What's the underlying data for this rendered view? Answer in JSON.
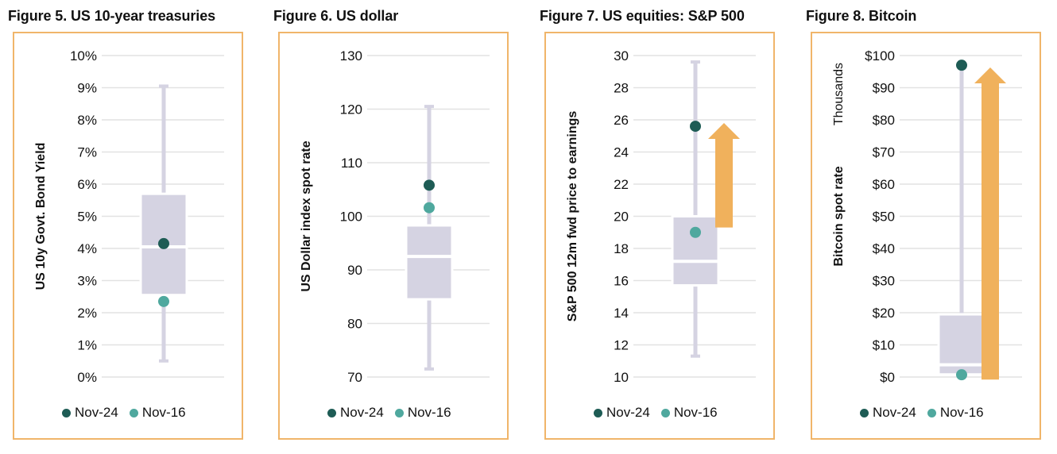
{
  "colors": {
    "nov24": "#1E5C55",
    "nov16": "#4FA89E",
    "box": "#D5D3E2",
    "grid": "#E2E2E2",
    "arrow": "#F0B15C",
    "frame": "#F0B56A"
  },
  "legend": {
    "nov24": "Nov-24",
    "nov16": "Nov-16"
  },
  "chart_data": [
    {
      "type": "boxplot",
      "title": "Figure 5. US 10-year treasuries",
      "ylabel": "US 10y Govt. Bond Yield",
      "ylim": [
        0,
        10
      ],
      "ticks": [
        0,
        1,
        2,
        3,
        4,
        5,
        6,
        7,
        8,
        9,
        10
      ],
      "tick_labels": [
        "0%",
        "1%",
        "2%",
        "3%",
        "4%",
        "5%",
        "6%",
        "7%",
        "8%",
        "9%",
        "10%"
      ],
      "box": {
        "min": 0.5,
        "q1": 2.55,
        "median": 4.05,
        "q3": 5.7,
        "max": 9.05
      },
      "series": [
        {
          "name": "Nov-24",
          "value": 4.15
        },
        {
          "name": "Nov-16",
          "value": 2.35
        }
      ],
      "arrow": null
    },
    {
      "type": "boxplot",
      "title": "Figure 6. US dollar",
      "ylabel": "US Dollar index spot rate",
      "ylim": [
        70,
        130
      ],
      "ticks": [
        70,
        80,
        90,
        100,
        110,
        120,
        130
      ],
      "tick_labels": [
        "70",
        "80",
        "90",
        "100",
        "110",
        "120",
        "130"
      ],
      "box": {
        "min": 71.5,
        "q1": 84.5,
        "median": 92.5,
        "q3": 98.3,
        "max": 120.5
      },
      "series": [
        {
          "name": "Nov-24",
          "value": 105.8
        },
        {
          "name": "Nov-16",
          "value": 101.6
        }
      ],
      "arrow": null
    },
    {
      "type": "boxplot",
      "title": "Figure 7. US equities: S&P 500",
      "ylabel": "S&P 500 12m fwd price to earnings",
      "ylim": [
        10,
        30
      ],
      "ticks": [
        10,
        12,
        14,
        16,
        18,
        20,
        22,
        24,
        26,
        28,
        30
      ],
      "tick_labels": [
        "10",
        "12",
        "14",
        "16",
        "18",
        "20",
        "22",
        "24",
        "26",
        "28",
        "30"
      ],
      "box": {
        "min": 11.3,
        "q1": 15.7,
        "median": 17.2,
        "q3": 20.0,
        "max": 29.6
      },
      "series": [
        {
          "name": "Nov-24",
          "value": 25.6
        },
        {
          "name": "Nov-16",
          "value": 19.0
        }
      ],
      "arrow": {
        "from": 19.3,
        "to": 25.8
      }
    },
    {
      "type": "boxplot",
      "title": "Figure 8. Bitcoin",
      "ylabel": "Bitcoin spot rate",
      "unit_label": "Thousands",
      "ylim": [
        0,
        100
      ],
      "ticks": [
        0,
        10,
        20,
        30,
        40,
        50,
        60,
        70,
        80,
        90,
        100
      ],
      "tick_labels": [
        "$0",
        "$10",
        "$20",
        "$30",
        "$40",
        "$50",
        "$60",
        "$70",
        "$80",
        "$90",
        "$100"
      ],
      "box": {
        "min": 0.4,
        "q1": 0.8,
        "median": 3.8,
        "q3": 19.5,
        "max": 97
      },
      "series": [
        {
          "name": "Nov-24",
          "value": 97
        },
        {
          "name": "Nov-16",
          "value": 0.7
        }
      ],
      "arrow": {
        "from": -0.8,
        "to": 96.3
      }
    }
  ]
}
